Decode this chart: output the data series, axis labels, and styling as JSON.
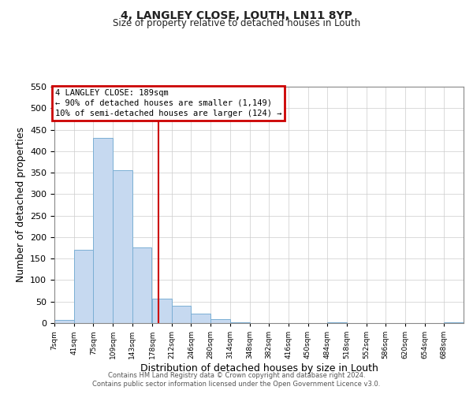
{
  "title": "4, LANGLEY CLOSE, LOUTH, LN11 8YP",
  "subtitle": "Size of property relative to detached houses in Louth",
  "xlabel": "Distribution of detached houses by size in Louth",
  "ylabel": "Number of detached properties",
  "bin_labels": [
    "7sqm",
    "41sqm",
    "75sqm",
    "109sqm",
    "143sqm",
    "178sqm",
    "212sqm",
    "246sqm",
    "280sqm",
    "314sqm",
    "348sqm",
    "382sqm",
    "416sqm",
    "450sqm",
    "484sqm",
    "518sqm",
    "552sqm",
    "586sqm",
    "620sqm",
    "654sqm",
    "688sqm"
  ],
  "bin_edges": [
    7,
    41,
    75,
    109,
    143,
    178,
    212,
    246,
    280,
    314,
    348,
    382,
    416,
    450,
    484,
    518,
    552,
    586,
    620,
    654,
    688,
    722
  ],
  "bar_heights": [
    8,
    170,
    430,
    356,
    176,
    57,
    40,
    22,
    10,
    2,
    0,
    0,
    0,
    0,
    1,
    0,
    0,
    0,
    0,
    0,
    1
  ],
  "bar_color": "#c6d9f0",
  "bar_edge_color": "#7bafd4",
  "property_value": 189,
  "vline_color": "#cc0000",
  "annotation_title": "4 LANGLEY CLOSE: 189sqm",
  "annotation_line1": "← 90% of detached houses are smaller (1,149)",
  "annotation_line2": "10% of semi-detached houses are larger (124) →",
  "annotation_box_color": "#cc0000",
  "ylim": [
    0,
    550
  ],
  "yticks": [
    0,
    50,
    100,
    150,
    200,
    250,
    300,
    350,
    400,
    450,
    500,
    550
  ],
  "footer1": "Contains HM Land Registry data © Crown copyright and database right 2024.",
  "footer2": "Contains public sector information licensed under the Open Government Licence v3.0.",
  "bg_color": "#ffffff",
  "grid_color": "#cccccc"
}
